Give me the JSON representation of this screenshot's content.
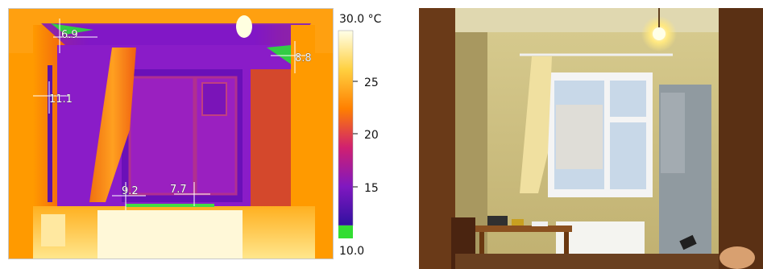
{
  "thermal_image": {
    "scale": {
      "max_label": "30.0 °C",
      "min_label": "10.0",
      "ticks": [
        "25",
        "20",
        "15"
      ],
      "colors": {
        "hot": "#ffffe0",
        "warm": "#ffb000",
        "mid": "#e8441a",
        "cool": "#b01aa8",
        "cold": "#3a0aa0",
        "below": "#33dd33"
      }
    },
    "spots": [
      {
        "label": "6.9"
      },
      {
        "label": "8.8"
      },
      {
        "label": "11.1"
      },
      {
        "label": "9.2"
      },
      {
        "label": "7.7"
      }
    ]
  },
  "photo": {
    "description_icon": "room-photo"
  }
}
